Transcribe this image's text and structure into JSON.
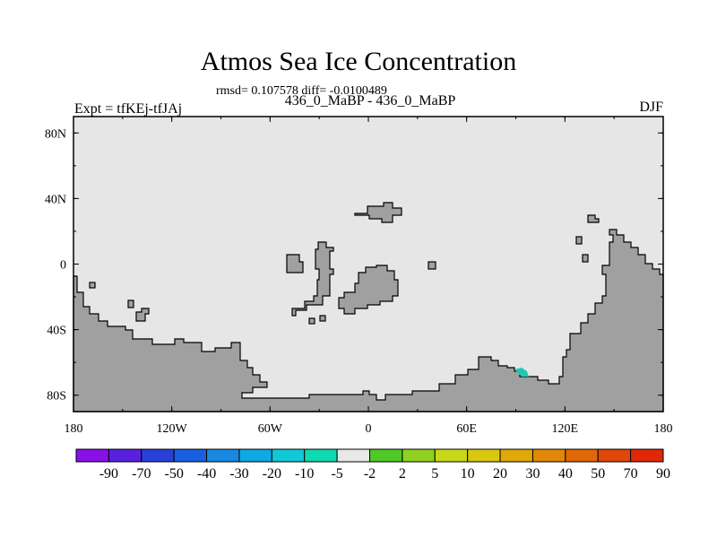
{
  "map": {
    "title": "Atmos Sea Ice Concentration",
    "stats": "rmsd= 0.107578 diff= -0.0100489",
    "subtitle": "436_0_MaBP - 436_0_MaBP",
    "left_label": "Expt = tfKEj-tfJAj",
    "right_label": "DJF",
    "projection": "cylindrical equidistant",
    "lon_range": [
      -180,
      180
    ],
    "lat_range": [
      -90,
      90
    ],
    "lon_ticks": [
      "180",
      "120W",
      "60W",
      "0",
      "60E",
      "120E",
      "180"
    ],
    "lat_ticks": [
      "80N",
      "40N",
      "0",
      "40S",
      "80S"
    ],
    "colors": {
      "ocean_background": "#e6e6e6",
      "land": "#a0a0a0",
      "anomaly_patch": "#20c8b0"
    },
    "anomaly_note": "small -5 to -10 anomaly near 95E, 68S"
  },
  "colorbar": {
    "colors": [
      "#8a10e8",
      "#5a20e0",
      "#2840d8",
      "#1860e0",
      "#1888e0",
      "#10a8e0",
      "#10c8d8",
      "#10d8b0",
      "#e8e8e8",
      "#50c828",
      "#90d020",
      "#c8d818",
      "#d8c810",
      "#e0a808",
      "#e08808",
      "#e06808",
      "#e04808",
      "#e02808"
    ],
    "labels": [
      "-90",
      "-70",
      "-50",
      "-40",
      "-30",
      "-20",
      "-10",
      "-5",
      "-2",
      "2",
      "5",
      "10",
      "20",
      "30",
      "40",
      "50",
      "70",
      "90"
    ]
  }
}
